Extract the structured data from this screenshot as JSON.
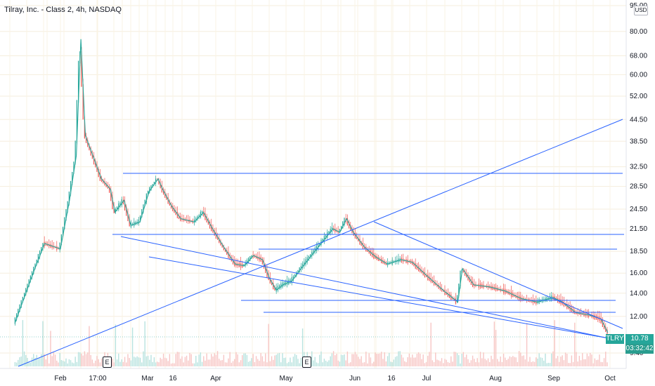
{
  "header": {
    "title": "Tilray, Inc. - Class 2, 4h, NASDAQ",
    "currency": "USD"
  },
  "price_tags": {
    "symbol": "TLRY",
    "last_price": "10.78",
    "countdown": "03:32:42"
  },
  "earnings_markers": [
    "E",
    "E"
  ],
  "colors": {
    "up": "#26a69a",
    "down": "#ef5350",
    "trendline": "#2962ff",
    "ma": "#26a69a"
  },
  "chart_data": {
    "type": "line",
    "yscale": "log",
    "ylim": [
      9.1,
      95
    ],
    "y_ticks": [
      "95.00",
      "80.00",
      "68.00",
      "60.00",
      "52.00",
      "44.50",
      "38.50",
      "32.50",
      "28.50",
      "24.50",
      "21.50",
      "18.50",
      "16.00",
      "14.00",
      "12.00",
      "9.40"
    ],
    "x_ticks": [
      "Feb",
      "17:00",
      "Mar",
      "16",
      "Apr",
      "May",
      "Jun",
      "16",
      "Jul",
      "Aug",
      "Sep",
      "Oct"
    ],
    "series": [
      {
        "x": [
          "Jan 12",
          "Jan 20",
          "Jan 25",
          "Feb 1",
          "Feb 5",
          "Feb 8",
          "Feb 9",
          "Feb 10",
          "Feb 11",
          "Feb 12",
          "Feb 16",
          "Feb 19",
          "Feb 23",
          "Feb 25",
          "Mar 1",
          "Mar 4",
          "Mar 8",
          "Mar 12",
          "Mar 16",
          "Mar 18",
          "Mar 22",
          "Mar 26",
          "Apr 1",
          "Apr 5",
          "Apr 9",
          "Apr 14",
          "Apr 19",
          "Apr 23",
          "Apr 27",
          "May 1",
          "May 4",
          "May 7",
          "May 10",
          "May 14",
          "May 18",
          "May 24",
          "Jun 1",
          "Jun 4",
          "Jun 7",
          "Jun 10",
          "Jun 15",
          "Jun 20",
          "Jun 25",
          "Jul 1",
          "Jul 6",
          "Jul 12",
          "Jul 20",
          "Jul 26",
          "Jul 28",
          "Aug 2",
          "Aug 9",
          "Aug 16",
          "Aug 23",
          "Aug 30",
          "Sep 6",
          "Sep 10",
          "Sep 16",
          "Sep 22",
          "Sep 27",
          "Sep 30"
        ],
        "y": [
          11.5,
          16,
          19.5,
          18.8,
          26,
          35,
          52,
          76,
          55,
          40,
          34,
          30,
          28,
          24,
          26,
          22,
          22.5,
          27.5,
          30,
          28,
          25,
          23,
          22.5,
          24,
          21.5,
          19,
          17,
          16.8,
          18,
          17.5,
          15.5,
          14.3,
          14.8,
          15.2,
          16.5,
          18.5,
          21.5,
          21,
          23,
          21,
          19,
          17.8,
          17,
          17.5,
          17.2,
          15.8,
          14.2,
          13.2,
          16.5,
          14.8,
          14.6,
          14.2,
          13.5,
          13.2,
          13.6,
          13.2,
          12.3,
          12.1,
          11.8,
          10.78
        ]
      }
    ]
  }
}
